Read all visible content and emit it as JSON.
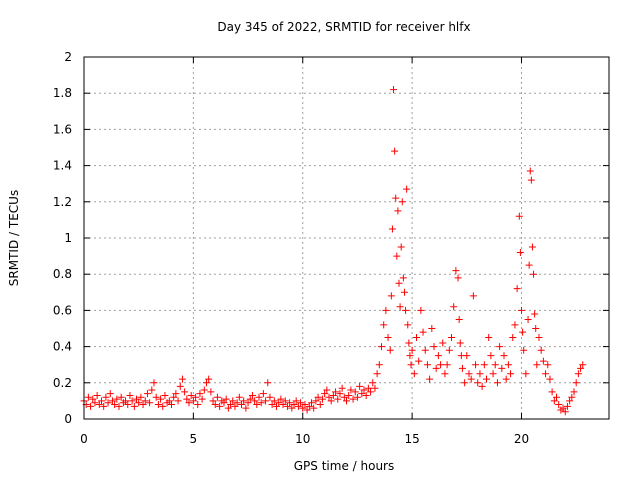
{
  "chart_data": {
    "type": "scatter",
    "title": "Day 345 of 2022, SRMTID for receiver hlfx",
    "xlabel": "GPS time / hours",
    "ylabel": "SRMTID / TECUs",
    "xlim": [
      0,
      24
    ],
    "ylim": [
      0,
      2
    ],
    "x_ticks": [
      0,
      5,
      10,
      15,
      20
    ],
    "y_ticks": [
      0,
      0.2,
      0.4,
      0.6,
      0.8,
      1,
      1.2,
      1.4,
      1.6,
      1.8,
      2
    ],
    "x_tick_labels": [
      "0",
      "5",
      "10",
      "15",
      "20"
    ],
    "y_tick_labels": [
      "0",
      "0.2",
      "0.4",
      "0.6",
      "0.8",
      "1",
      "1.2",
      "1.4",
      "1.6",
      "1.8",
      "2"
    ],
    "grid": true,
    "marker": "+",
    "color": "#ff0000",
    "series": [
      {
        "name": "SRMTID",
        "x": [
          0.0,
          0.1,
          0.2,
          0.3,
          0.4,
          0.5,
          0.6,
          0.7,
          0.8,
          0.9,
          1.0,
          1.1,
          1.2,
          1.3,
          1.4,
          1.5,
          1.6,
          1.7,
          1.8,
          1.9,
          2.0,
          2.1,
          2.2,
          2.3,
          2.4,
          2.5,
          2.6,
          2.7,
          2.8,
          2.9,
          3.0,
          3.1,
          3.2,
          3.3,
          3.4,
          3.5,
          3.6,
          3.7,
          3.8,
          3.9,
          4.0,
          4.1,
          4.2,
          4.3,
          4.4,
          4.5,
          4.6,
          4.7,
          4.8,
          4.9,
          5.0,
          5.1,
          5.2,
          5.3,
          5.4,
          5.5,
          5.6,
          5.7,
          5.8,
          5.9,
          6.0,
          6.1,
          6.2,
          6.3,
          6.4,
          6.5,
          6.6,
          6.7,
          6.8,
          6.9,
          7.0,
          7.1,
          7.2,
          7.3,
          7.4,
          7.5,
          7.6,
          7.7,
          7.8,
          7.9,
          8.0,
          8.1,
          8.2,
          8.3,
          8.4,
          8.5,
          8.6,
          8.7,
          8.8,
          8.9,
          9.0,
          9.1,
          9.2,
          9.3,
          9.4,
          9.5,
          9.6,
          9.7,
          9.8,
          9.9,
          10.0,
          10.1,
          10.2,
          10.3,
          10.4,
          10.5,
          10.6,
          10.7,
          10.8,
          10.9,
          11.0,
          11.1,
          11.2,
          11.3,
          11.4,
          11.5,
          11.6,
          11.7,
          11.8,
          11.9,
          12.0,
          12.1,
          12.2,
          12.3,
          12.4,
          12.5,
          12.6,
          12.7,
          12.8,
          12.9,
          13.0,
          13.1,
          13.2,
          13.3,
          13.4,
          13.5,
          13.6,
          13.7,
          13.8,
          13.9,
          14.0,
          14.05,
          14.1,
          14.15,
          14.2,
          14.25,
          14.3,
          14.35,
          14.4,
          14.45,
          14.5,
          14.55,
          14.6,
          14.65,
          14.7,
          14.75,
          14.8,
          14.85,
          14.9,
          14.95,
          15.0,
          15.1,
          15.2,
          15.3,
          15.4,
          15.5,
          15.6,
          15.7,
          15.8,
          15.9,
          16.0,
          16.1,
          16.2,
          16.3,
          16.4,
          16.5,
          16.6,
          16.7,
          16.8,
          16.9,
          17.0,
          17.1,
          17.15,
          17.2,
          17.25,
          17.3,
          17.4,
          17.5,
          17.6,
          17.7,
          17.8,
          17.9,
          18.0,
          18.1,
          18.2,
          18.3,
          18.4,
          18.5,
          18.6,
          18.7,
          18.8,
          18.9,
          19.0,
          19.1,
          19.2,
          19.3,
          19.4,
          19.5,
          19.6,
          19.7,
          19.8,
          19.9,
          19.95,
          20.0,
          20.05,
          20.1,
          20.2,
          20.3,
          20.35,
          20.4,
          20.45,
          20.5,
          20.55,
          20.6,
          20.65,
          20.7,
          20.8,
          20.9,
          21.0,
          21.1,
          21.2,
          21.3,
          21.4,
          21.5,
          21.6,
          21.7,
          21.8,
          21.9,
          22.0,
          22.1,
          22.2,
          22.3,
          22.4,
          22.5,
          22.6,
          22.7,
          22.8
        ],
        "y": [
          0.1,
          0.08,
          0.12,
          0.07,
          0.11,
          0.09,
          0.13,
          0.08,
          0.1,
          0.07,
          0.12,
          0.09,
          0.14,
          0.1,
          0.08,
          0.11,
          0.07,
          0.12,
          0.09,
          0.1,
          0.08,
          0.13,
          0.1,
          0.07,
          0.11,
          0.09,
          0.12,
          0.08,
          0.1,
          0.14,
          0.09,
          0.16,
          0.2,
          0.12,
          0.08,
          0.11,
          0.07,
          0.13,
          0.09,
          0.1,
          0.08,
          0.12,
          0.14,
          0.1,
          0.18,
          0.22,
          0.15,
          0.11,
          0.09,
          0.13,
          0.1,
          0.12,
          0.08,
          0.14,
          0.11,
          0.16,
          0.2,
          0.22,
          0.15,
          0.1,
          0.08,
          0.12,
          0.07,
          0.1,
          0.09,
          0.11,
          0.06,
          0.08,
          0.1,
          0.07,
          0.09,
          0.12,
          0.08,
          0.1,
          0.06,
          0.09,
          0.11,
          0.13,
          0.1,
          0.08,
          0.12,
          0.09,
          0.14,
          0.1,
          0.2,
          0.12,
          0.08,
          0.1,
          0.07,
          0.09,
          0.11,
          0.08,
          0.1,
          0.07,
          0.09,
          0.06,
          0.08,
          0.1,
          0.07,
          0.09,
          0.06,
          0.08,
          0.05,
          0.07,
          0.09,
          0.06,
          0.1,
          0.12,
          0.08,
          0.11,
          0.14,
          0.16,
          0.12,
          0.1,
          0.13,
          0.15,
          0.11,
          0.14,
          0.17,
          0.12,
          0.1,
          0.13,
          0.16,
          0.11,
          0.15,
          0.12,
          0.18,
          0.14,
          0.16,
          0.13,
          0.17,
          0.15,
          0.2,
          0.17,
          0.25,
          0.3,
          0.4,
          0.52,
          0.6,
          0.45,
          0.38,
          0.68,
          1.05,
          1.82,
          1.48,
          1.22,
          0.9,
          1.15,
          0.75,
          0.62,
          0.95,
          1.2,
          0.78,
          0.7,
          0.6,
          1.27,
          0.52,
          0.42,
          0.35,
          0.3,
          0.38,
          0.25,
          0.45,
          0.32,
          0.6,
          0.48,
          0.38,
          0.3,
          0.22,
          0.5,
          0.4,
          0.28,
          0.35,
          0.3,
          0.42,
          0.25,
          0.3,
          0.38,
          0.45,
          0.62,
          0.82,
          0.78,
          0.55,
          0.42,
          0.35,
          0.28,
          0.2,
          0.35,
          0.25,
          0.22,
          0.68,
          0.3,
          0.2,
          0.25,
          0.18,
          0.3,
          0.22,
          0.45,
          0.35,
          0.25,
          0.3,
          0.2,
          0.4,
          0.28,
          0.35,
          0.22,
          0.3,
          0.25,
          0.45,
          0.52,
          0.72,
          1.12,
          0.92,
          0.6,
          0.48,
          0.38,
          0.25,
          0.55,
          0.85,
          1.37,
          1.32,
          0.95,
          0.8,
          0.58,
          0.5,
          0.3,
          0.45,
          0.38,
          0.32,
          0.25,
          0.3,
          0.22,
          0.15,
          0.1,
          0.12,
          0.08,
          0.05,
          0.06,
          0.04,
          0.07,
          0.1,
          0.12,
          0.15,
          0.2,
          0.25,
          0.28,
          0.3
        ]
      }
    ]
  }
}
